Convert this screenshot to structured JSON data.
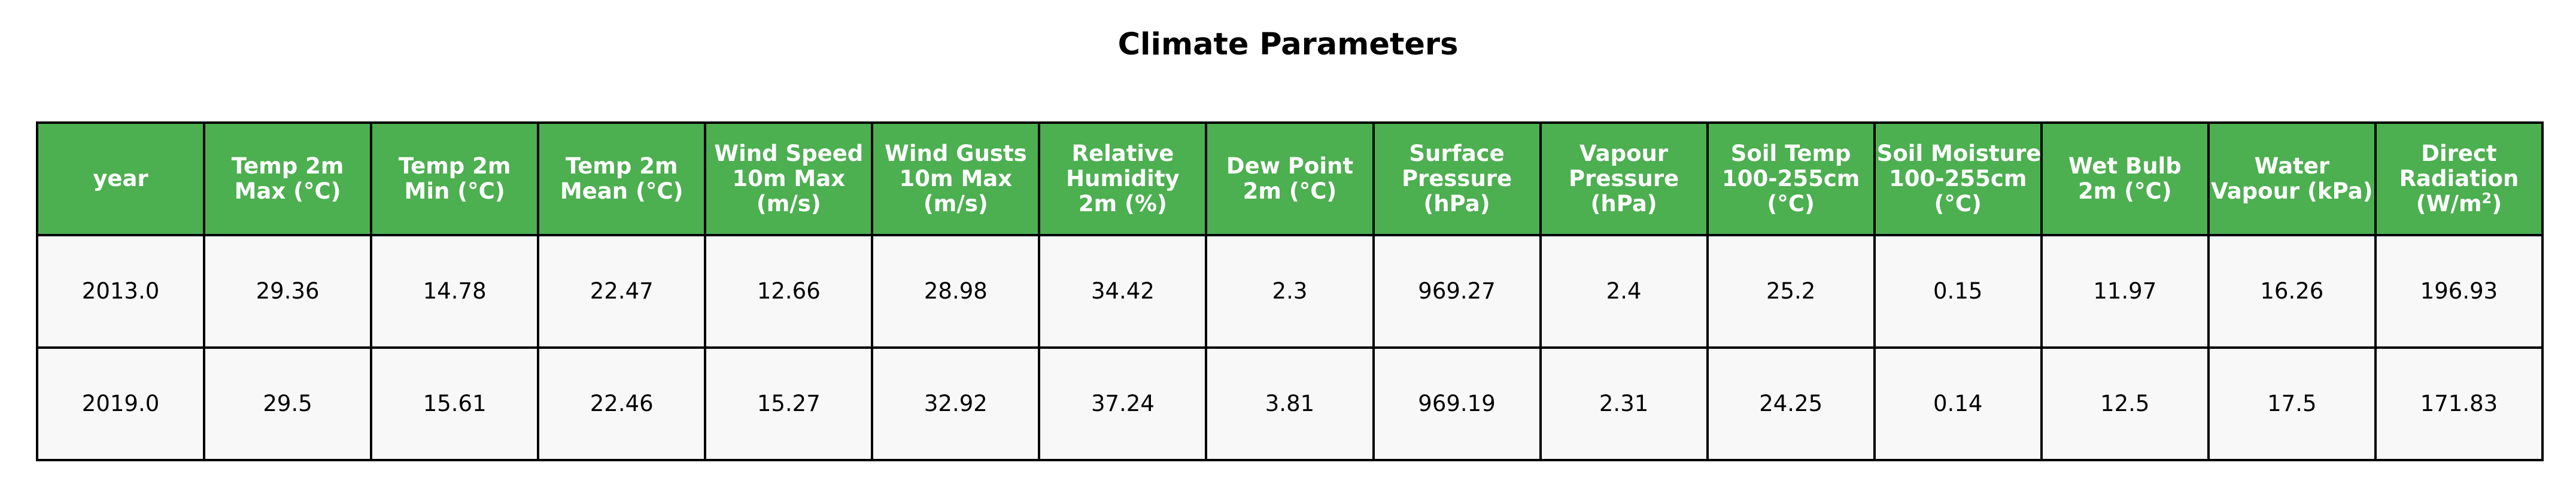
{
  "chart_data": {
    "type": "table",
    "title": "Climate Parameters",
    "colors": {
      "header_bg": "#4caf50",
      "header_text": "#ffffff",
      "cell_bg": "#f8f8f8",
      "border": "#000000"
    },
    "columns": [
      {
        "lines": [
          "year"
        ]
      },
      {
        "lines": [
          "Temp 2m",
          "Max (°C)"
        ]
      },
      {
        "lines": [
          "Temp 2m",
          "Min (°C)"
        ]
      },
      {
        "lines": [
          "Temp 2m",
          "Mean (°C)"
        ]
      },
      {
        "lines": [
          "Wind Speed",
          "10m Max",
          "(m/s)"
        ]
      },
      {
        "lines": [
          "Wind Gusts",
          "10m Max",
          "(m/s)"
        ]
      },
      {
        "lines": [
          "Relative",
          "Humidity",
          "2m (%)"
        ]
      },
      {
        "lines": [
          "Dew Point",
          "2m (°C)"
        ]
      },
      {
        "lines": [
          "Surface",
          "Pressure",
          "(hPa)"
        ]
      },
      {
        "lines": [
          "Vapour",
          "Pressure",
          "(hPa)"
        ]
      },
      {
        "lines": [
          "Soil Temp",
          "100-255cm",
          "(°C)"
        ]
      },
      {
        "lines": [
          "Soil Moisture",
          "100-255cm",
          "(°C)"
        ]
      },
      {
        "lines": [
          "Wet Bulb",
          "2m (°C)"
        ]
      },
      {
        "lines": [
          "Water",
          "Vapour (kPa)"
        ]
      },
      {
        "lines": [
          "Direct",
          "Radiation",
          "(W/m",
          "2",
          ")"
        ],
        "superscript_line": 3
      }
    ],
    "rows": [
      [
        "2013.0",
        "29.36",
        "14.78",
        "22.47",
        "12.66",
        "28.98",
        "34.42",
        "2.3",
        "969.27",
        "2.4",
        "25.2",
        "0.15",
        "11.97",
        "16.26",
        "196.93"
      ],
      [
        "2019.0",
        "29.5",
        "15.61",
        "22.46",
        "15.27",
        "32.92",
        "37.24",
        "3.81",
        "969.19",
        "2.31",
        "24.25",
        "0.14",
        "12.5",
        "17.5",
        "171.83"
      ]
    ]
  }
}
